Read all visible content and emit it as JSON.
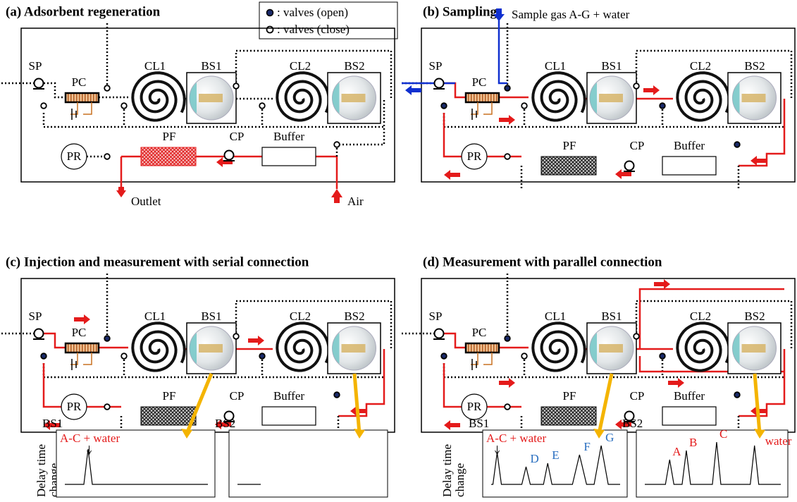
{
  "legend": {
    "open": ": valves (open)",
    "close": ": valves (close)"
  },
  "panels": [
    {
      "title": "(a) Adsorbent regeneration",
      "components": {
        "sp": "SP",
        "pc": "PC",
        "cl1": "CL1",
        "bs1": "BS1",
        "cl2": "CL2",
        "bs2": "BS2",
        "pr": "PR",
        "pf": "PF",
        "cp": "CP",
        "buffer": "Buffer"
      },
      "outlet": "Outlet",
      "air": "Air"
    },
    {
      "title": "(b) Sampling",
      "components": {
        "sp": "SP",
        "pc": "PC",
        "cl1": "CL1",
        "bs1": "BS1",
        "cl2": "CL2",
        "bs2": "BS2",
        "pr": "PR",
        "pf": "PF",
        "cp": "CP",
        "buffer": "Buffer"
      },
      "sample": "Sample gas A-G + water"
    },
    {
      "title": "(c) Injection and measurement with serial connection",
      "components": {
        "sp": "SP",
        "pc": "PC",
        "cl1": "CL1",
        "bs1": "BS1",
        "cl2": "CL2",
        "bs2": "BS2",
        "pr": "PR",
        "pf": "PF",
        "cp": "CP",
        "buffer": "Buffer"
      },
      "ylabel": [
        "Delay time",
        "change"
      ],
      "plots": [
        {
          "label": "BS1",
          "annotations": [
            "A-C + water"
          ]
        },
        {
          "label": "BS2"
        }
      ]
    },
    {
      "title": "(d) Measurement with parallel connection",
      "components": {
        "sp": "SP",
        "pc": "PC",
        "cl1": "CL1",
        "bs1": "BS1",
        "cl2": "CL2",
        "bs2": "BS2",
        "pr": "PR",
        "pf": "PF",
        "cp": "CP",
        "buffer": "Buffer"
      },
      "ylabel": [
        "Delay time",
        "change"
      ],
      "plots": [
        {
          "label": "BS1",
          "annotations": [
            "A-C + water",
            "D",
            "E",
            "F",
            "G"
          ]
        },
        {
          "label": "BS2",
          "annotations": [
            "A",
            "B",
            "C",
            "water"
          ]
        }
      ]
    }
  ]
}
